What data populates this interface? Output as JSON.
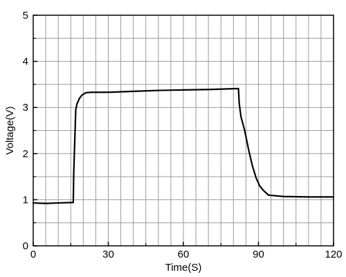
{
  "chart_data": {
    "type": "line",
    "title": "",
    "xlabel": "Time(S)",
    "ylabel": "Voltage(V)",
    "xlim": [
      0,
      120
    ],
    "ylim": [
      0,
      5
    ],
    "x_ticks": [
      0,
      30,
      60,
      90,
      120
    ],
    "x_tick_labels": [
      "0",
      "30",
      "60",
      "90",
      "120"
    ],
    "y_ticks": [
      0,
      1,
      2,
      3,
      4,
      5
    ],
    "y_tick_labels": [
      "0",
      "1",
      "2",
      "3",
      "4",
      "5"
    ],
    "x_grid_step": 5,
    "y_grid_step": 0.5,
    "grid": true,
    "legend": "none",
    "series": [
      {
        "color": "#000000",
        "x": [
          0,
          5,
          10,
          16,
          16.2,
          17,
          17.5,
          18.5,
          19.5,
          21,
          23,
          30,
          40,
          50,
          60,
          70,
          82,
          82.3,
          83,
          84.5,
          86,
          87.5,
          89,
          90.5,
          92,
          94,
          96,
          100,
          110,
          120
        ],
        "y": [
          0.93,
          0.92,
          0.93,
          0.94,
          1.6,
          2.95,
          3.08,
          3.2,
          3.27,
          3.32,
          3.33,
          3.33,
          3.35,
          3.37,
          3.38,
          3.39,
          3.41,
          3.1,
          2.8,
          2.5,
          2.1,
          1.75,
          1.48,
          1.3,
          1.2,
          1.1,
          1.09,
          1.07,
          1.06,
          1.06
        ]
      }
    ]
  }
}
